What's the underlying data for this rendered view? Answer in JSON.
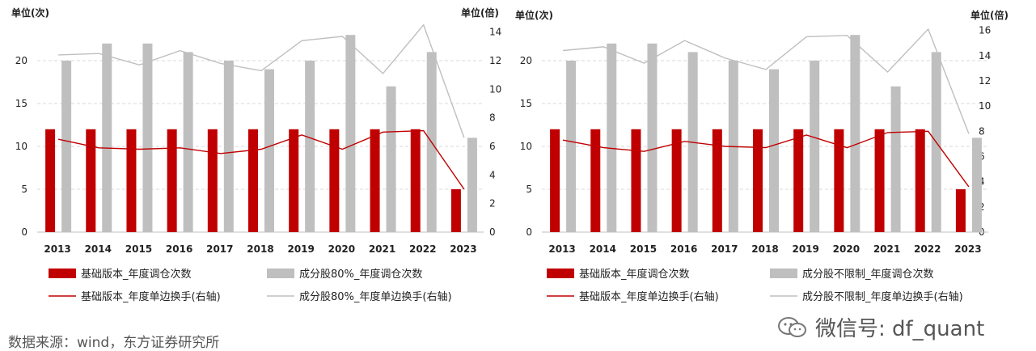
{
  "colors": {
    "bar_base": "#C00000",
    "bar_comp": "#BFBFBF",
    "line_base": "#C00000",
    "line_comp": "#BFBFBF",
    "grid": "#D9D9D9"
  },
  "source_text": "数据来源：wind，东方证券研究所",
  "watermark_text": "微信号: df_quant",
  "chart_data": [
    {
      "type": "bar",
      "left_axis_unit": "单位(次)",
      "right_axis_unit": "单位(倍)",
      "categories": [
        "2013",
        "2014",
        "2015",
        "2016",
        "2017",
        "2018",
        "2019",
        "2020",
        "2021",
        "2022",
        "2023"
      ],
      "ylim": [
        0,
        25
      ],
      "yticks": [
        "0",
        "5",
        "10",
        "15",
        "20"
      ],
      "y2lim": [
        0,
        15
      ],
      "y2ticks": [
        "0",
        "2",
        "4",
        "6",
        "8",
        "10",
        "12",
        "14"
      ],
      "series": [
        {
          "name": "基础版本_年度调仓次数",
          "kind": "bar",
          "axis": "left",
          "values": [
            12,
            12,
            12,
            12,
            12,
            12,
            12,
            12,
            12,
            12,
            5
          ]
        },
        {
          "name": "成分股80%_年度调仓次数",
          "kind": "bar",
          "axis": "left",
          "values": [
            20,
            22,
            22,
            21,
            20,
            19,
            20,
            23,
            17,
            21,
            11
          ]
        },
        {
          "name": "基础版本_年度单边换手(右轴)",
          "kind": "line",
          "axis": "right",
          "values": [
            6.5,
            5.9,
            5.8,
            5.9,
            5.5,
            5.8,
            6.8,
            5.8,
            7.0,
            7.1,
            3.0
          ]
        },
        {
          "name": "成分股80%_年度单边换手(右轴)",
          "kind": "line",
          "axis": "right",
          "values": [
            12.4,
            12.5,
            11.7,
            12.7,
            11.8,
            11.3,
            13.4,
            13.7,
            11.1,
            14.5,
            6.6
          ]
        }
      ]
    },
    {
      "type": "bar",
      "left_axis_unit": "单位(次)",
      "right_axis_unit": "单位(倍)",
      "categories": [
        "2013",
        "2014",
        "2015",
        "2016",
        "2017",
        "2018",
        "2019",
        "2020",
        "2021",
        "2022",
        "2023"
      ],
      "ylim": [
        0,
        25
      ],
      "yticks": [
        "0",
        "5",
        "10",
        "15",
        "20"
      ],
      "y2lim": [
        0,
        17
      ],
      "y2ticks": [
        "0",
        "2",
        "4",
        "6",
        "8",
        "10",
        "12",
        "14",
        "16"
      ],
      "series": [
        {
          "name": "基础版本_年度调仓次数",
          "kind": "bar",
          "axis": "left",
          "values": [
            12,
            12,
            12,
            12,
            12,
            12,
            12,
            12,
            12,
            12,
            5
          ]
        },
        {
          "name": "成分股不限制_年度调仓次数",
          "kind": "bar",
          "axis": "left",
          "values": [
            20,
            22,
            22,
            21,
            20,
            19,
            20,
            23,
            17,
            21,
            11
          ]
        },
        {
          "name": "基础版本_年度单边换手(右轴)",
          "kind": "line",
          "axis": "right",
          "values": [
            7.3,
            6.7,
            6.4,
            7.2,
            6.8,
            6.7,
            7.7,
            6.7,
            7.9,
            8.0,
            3.6
          ]
        },
        {
          "name": "成分股不限制_年度单边换手(右轴)",
          "kind": "line",
          "axis": "right",
          "values": [
            14.4,
            14.7,
            13.4,
            15.2,
            13.8,
            12.9,
            15.5,
            15.6,
            12.7,
            16.1,
            7.8
          ]
        }
      ]
    }
  ]
}
